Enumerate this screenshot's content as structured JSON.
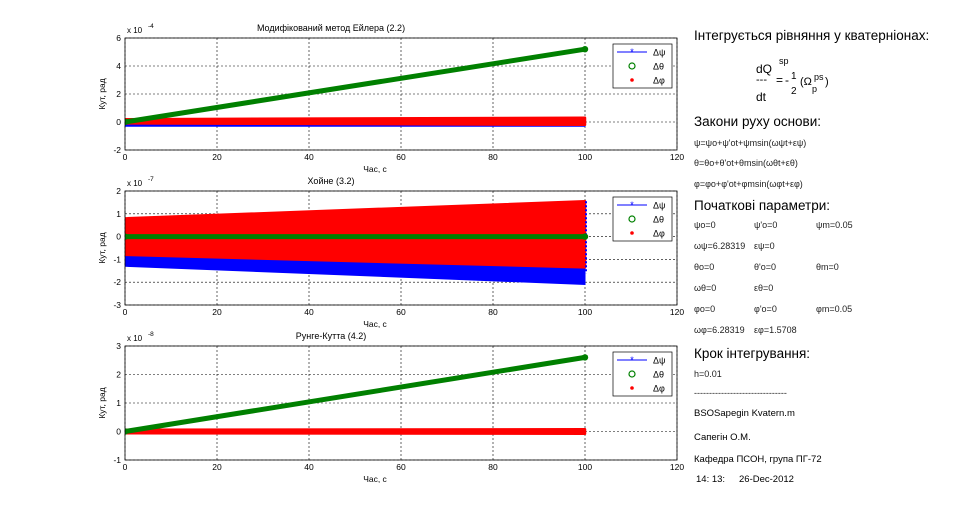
{
  "charts": [
    {
      "title": "Модифікований метод Ейлера (2.2)",
      "scale": "x 10",
      "exp": "-4",
      "xlabel": "Час, с",
      "ylabel": "Кут, рад",
      "xlim": [
        0,
        120
      ],
      "ylim": [
        -2,
        6
      ],
      "xticks": [
        "0",
        "20",
        "40",
        "60",
        "80",
        "100",
        "120"
      ],
      "yticks": [
        "-2",
        "0",
        "2",
        "4",
        "6"
      ],
      "legend": [
        "Δψ",
        "Δθ",
        "Δφ"
      ],
      "psi": {
        "center": -0.2,
        "amp": 0.1
      },
      "theta": {
        "start": 0,
        "end": 5.2
      },
      "phi": {
        "center": 0.05,
        "amp_start": 0.15,
        "amp_end": 0.25
      }
    },
    {
      "title": "Хойне (3.2)",
      "scale": "x 10",
      "exp": "-7",
      "xlabel": "Час, с",
      "ylabel": "Кут, рад",
      "xlim": [
        0,
        120
      ],
      "ylim": [
        -3,
        2
      ],
      "xticks": [
        "0",
        "20",
        "40",
        "60",
        "80",
        "100",
        "120"
      ],
      "yticks": [
        "-3",
        "-2",
        "-1",
        "0",
        "1",
        "2"
      ],
      "legend": [
        "Δψ",
        "Δθ",
        "Δφ"
      ],
      "psi": {
        "center_start": -1.0,
        "center_end": -1.6,
        "amp_start": 0.3,
        "amp_end": 0.5
      },
      "theta": {
        "start": 0,
        "end": 0
      },
      "phi": {
        "center_start": 0.0,
        "center_end": 0.1,
        "amp_start": 0.8,
        "amp_end": 1.45
      }
    },
    {
      "title": "Рунге-Кутта (4.2)",
      "scale": "x 10",
      "exp": "-8",
      "xlabel": "Час, с",
      "ylabel": "Кут, рад",
      "xlim": [
        0,
        120
      ],
      "ylim": [
        -1,
        3
      ],
      "xticks": [
        "0",
        "20",
        "40",
        "60",
        "80",
        "100",
        "120"
      ],
      "yticks": [
        "-1",
        "0",
        "1",
        "2",
        "3"
      ],
      "legend": [
        "Δψ",
        "Δθ",
        "Δφ"
      ],
      "psi": {
        "center": -0.02,
        "amp": 0.03
      },
      "theta": {
        "start": 0,
        "end": 2.6
      },
      "phi": {
        "center": 0.0,
        "amp_start": 0.06,
        "amp_end": 0.08
      }
    }
  ],
  "colors": {
    "psi": "#0000ff",
    "theta": "#008000",
    "phi": "#ff0000"
  },
  "panel": {
    "heading1": "Інтегрується рівняння у кватерніонах:",
    "eq": {
      "d": "dQ",
      "sp": "sp",
      "dt": "dt",
      "dash": "---",
      "eqsign": "=",
      "minus": "-",
      "one": "1",
      "two": "2",
      "omega": "(Ω",
      "ps": "ps",
      "p": "p",
      "close": ")"
    },
    "heading2": "Закони руху основи:",
    "law1": "ψ=ψo+ψ'ot+ψmsin(ωψt+εψ)",
    "law2": "θ=θo+θ'ot+θmsin(ωθt+εθ)",
    "law3": "φ=φo+φ'ot+φmsin(ωφt+εφ)",
    "heading3": "Початкові параметри:",
    "params": [
      [
        "ψo=0",
        "ψ'o=0",
        "ψm=0.05"
      ],
      [
        "ωψ=6.28319",
        "εψ=0",
        ""
      ],
      [
        "θo=0",
        "θ'o=0",
        "θm=0"
      ],
      [
        "ωθ=0",
        "εθ=0",
        ""
      ],
      [
        "φo=0",
        "φ'o=0",
        "φm=0.05"
      ],
      [
        "ωφ=6.28319",
        "εφ=1.5708",
        ""
      ]
    ],
    "heading4": "Крок інтегрування:",
    "step": "h=0.01",
    "divider": "-------------------------------",
    "filename": "BSOSapegin Kvatern.m",
    "author": "Сапегін О.М.",
    "dept": "Кафедра ПСОН, група ПГ-72",
    "time": "14: 13:",
    "date": "26-Dec-2012"
  }
}
